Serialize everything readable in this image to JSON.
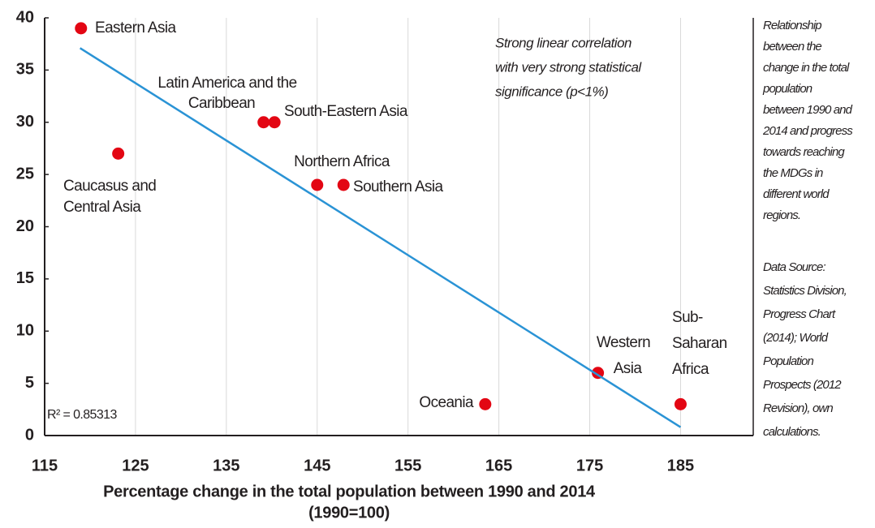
{
  "chart_data": {
    "type": "scatter",
    "xlabel": [
      "Percentage change in the total population between 1990 and 2014",
      "(1990=100)"
    ],
    "annotation": [
      "Strong linear correlation",
      "with very strong statistical",
      "significance (p<1%)"
    ],
    "r_squared_label": "R² = 0.85313",
    "note": [
      "Relationship",
      "between the",
      "change in the total",
      "population",
      "between 1990 and",
      "2014 and progress",
      "towards reaching",
      "the MDGs in",
      "different world",
      "regions."
    ],
    "source": [
      "Data Source:",
      "Statistics Division,",
      "Progress Chart",
      "(2014); World",
      "Population",
      "Prospects (2012",
      "Revision), own",
      "calculations."
    ],
    "series": [
      {
        "name": "Regions",
        "color": "#e30613",
        "labels": [
          [
            "Eastern Asia"
          ],
          [
            "Latin America and the",
            "Caribbean"
          ],
          [
            "South-Eastern Asia"
          ],
          [
            "Caucasus and",
            "Central Asia"
          ],
          [
            "Northern Africa"
          ],
          [
            "Southern Asia"
          ],
          [
            "Oceania"
          ],
          [
            "Western",
            "Asia"
          ],
          [
            "Sub-",
            "Saharan",
            "Africa"
          ]
        ],
        "x": [
          119,
          139.1,
          140.3,
          123.1,
          145,
          147.9,
          163.5,
          175.9,
          185
        ],
        "values": [
          39,
          30,
          30,
          27,
          24,
          24,
          3,
          6,
          3
        ]
      },
      {
        "name": "Trend",
        "color": "#2a93d5",
        "line": true,
        "x": [
          118.9,
          185
        ],
        "values": [
          37.1,
          0.8
        ]
      }
    ],
    "xlim": [
      115,
      193
    ],
    "xticks": [
      115,
      125,
      135,
      145,
      155,
      165,
      175,
      185
    ],
    "ylim": [
      0,
      40
    ],
    "yticks": [
      0,
      5,
      10,
      15,
      20,
      25,
      30,
      35,
      40
    ],
    "grid": true
  }
}
